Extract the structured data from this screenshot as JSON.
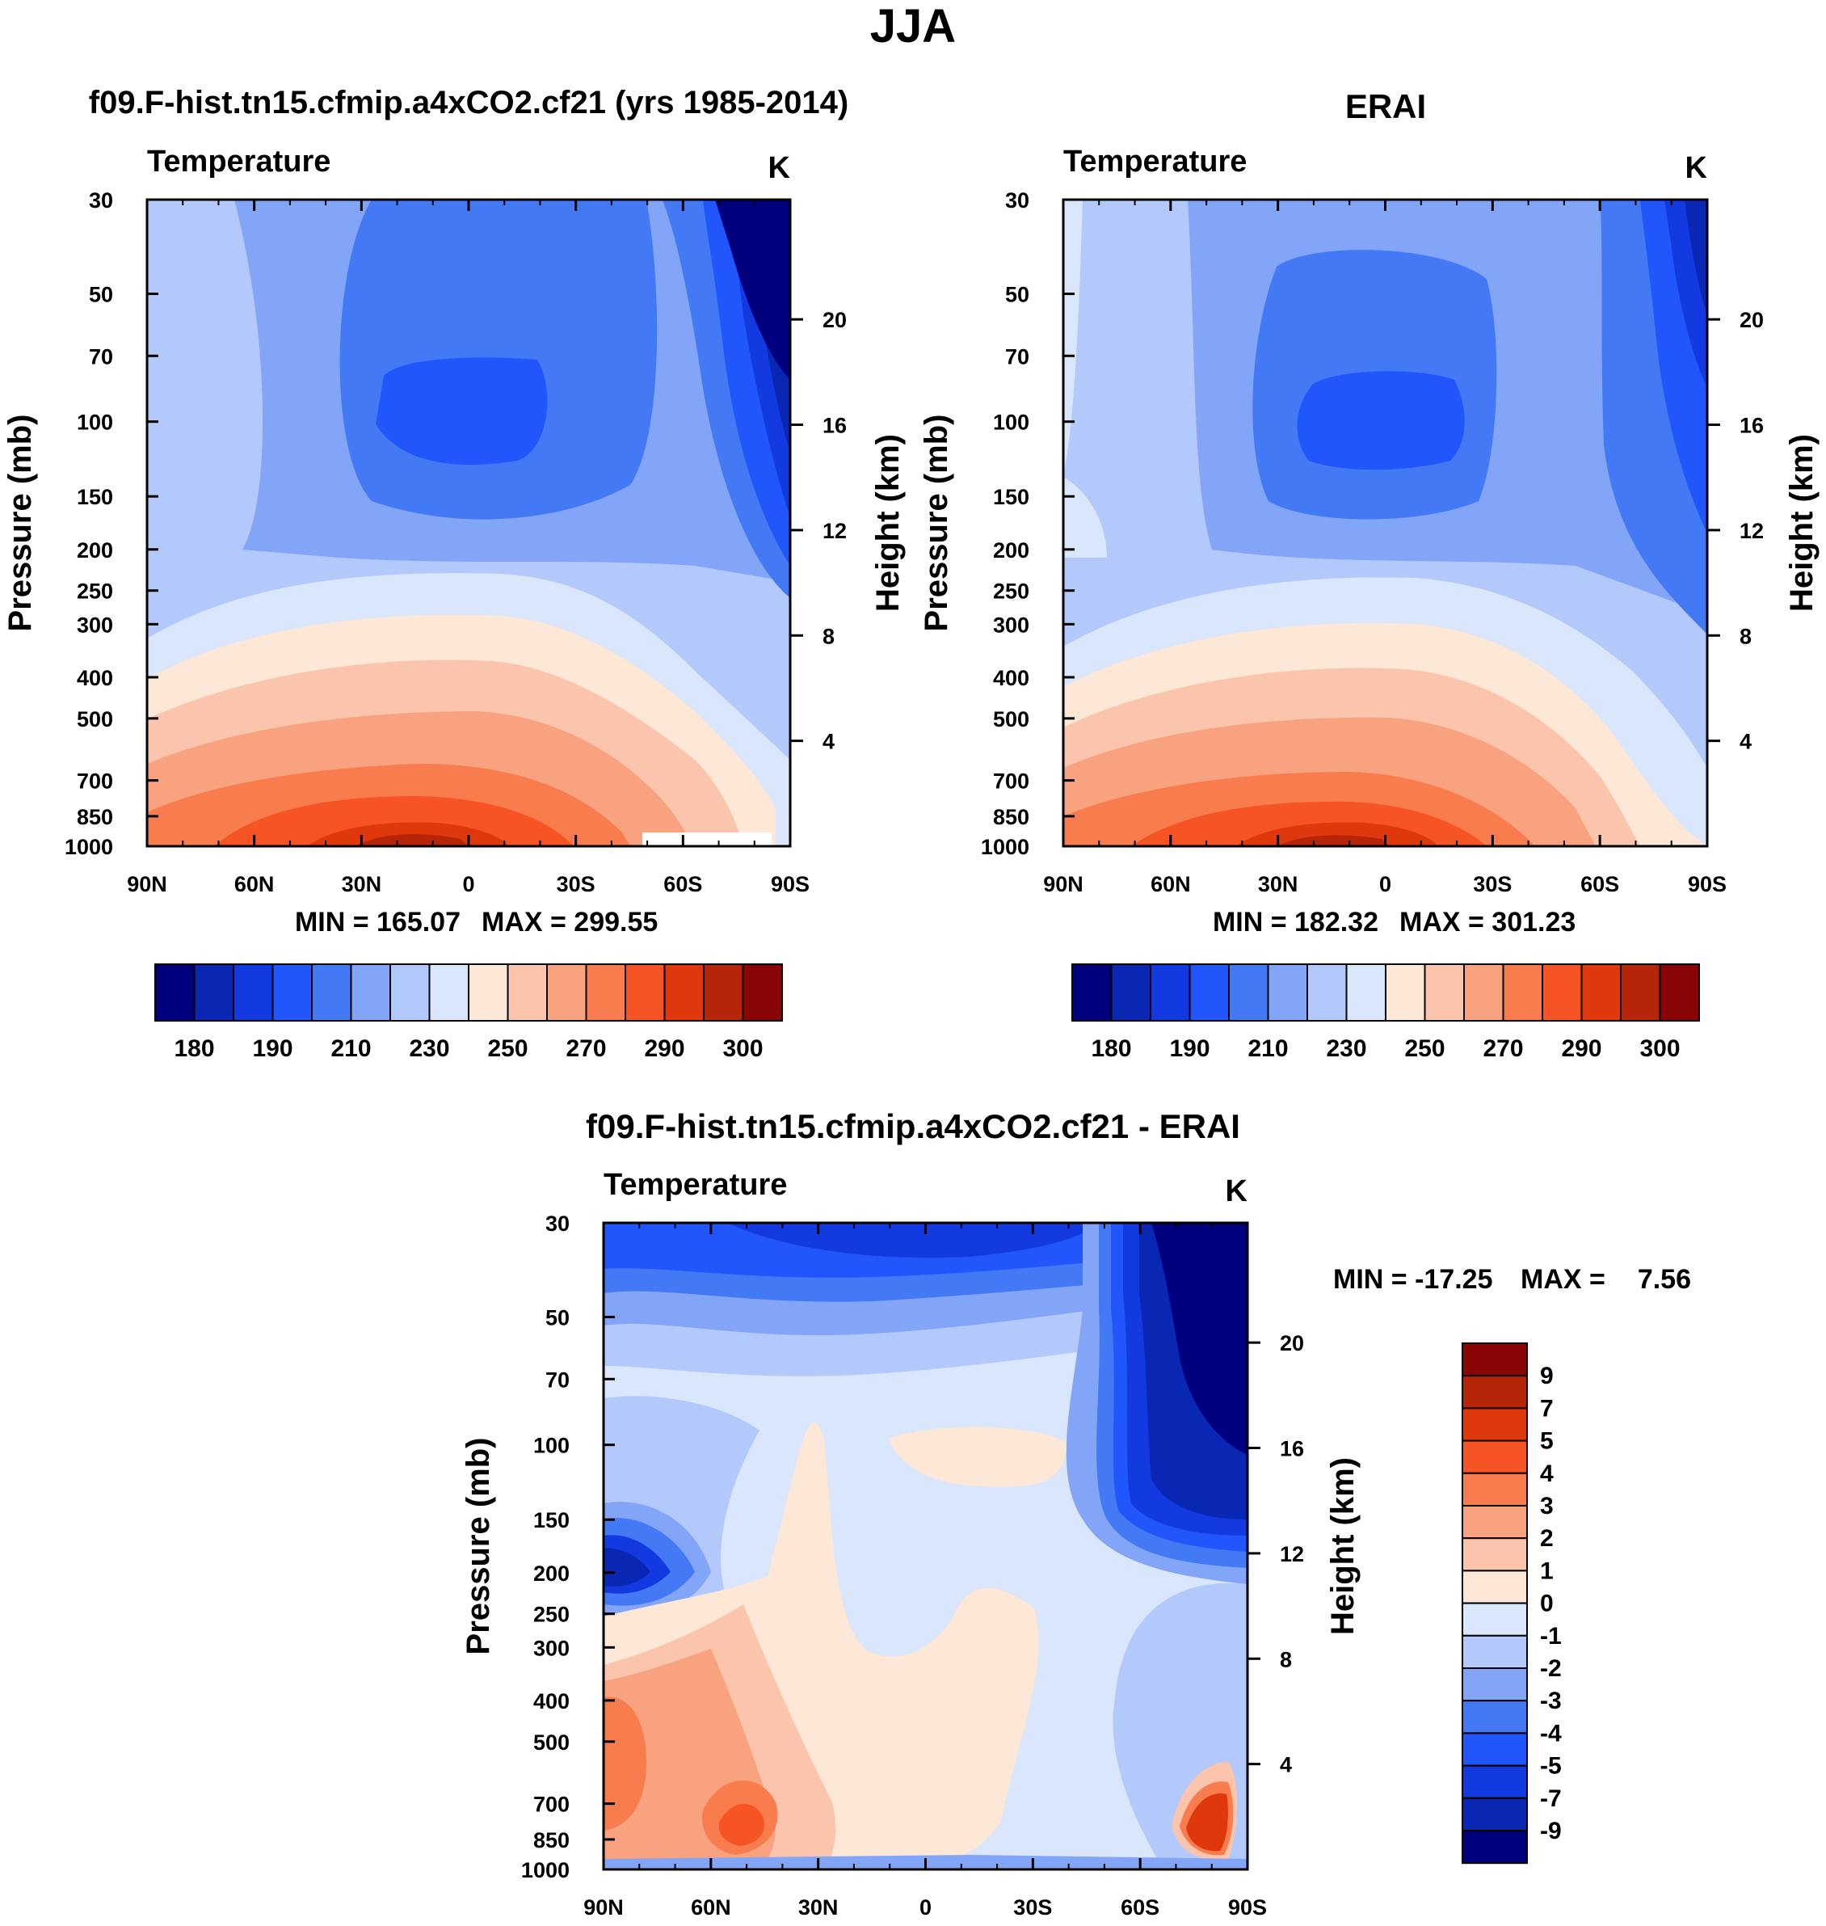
{
  "figure_title": "JJA",
  "colors": {
    "abs_scale": [
      "#00007f",
      "#0a27b4",
      "#123ae0",
      "#2056fb",
      "#4479f5",
      "#82a5f7",
      "#b3c9fb",
      "#d9e6fc",
      "#fde7d6",
      "#fbc5ad",
      "#f9a27f",
      "#f87c4d",
      "#f65424",
      "#e0380d",
      "#b62508",
      "#8a0606"
    ],
    "diff_scale": [
      "#00007f",
      "#0a27b4",
      "#123ae0",
      "#2056fb",
      "#4479f5",
      "#82a5f7",
      "#b3c9fb",
      "#d9e6fc",
      "#fde7d6",
      "#fbc5ad",
      "#f9a27f",
      "#f87c4d",
      "#f65424",
      "#e0380d",
      "#b62508",
      "#8a0606"
    ]
  },
  "chart_data": [
    {
      "id": "model",
      "type": "heatmap",
      "title": "f09.F-hist.tn15.cfmip.a4xCO2.cf21 (yrs 1985-2014)",
      "variable": "Temperature",
      "units": "K",
      "xlabel": "",
      "ylabel": "Pressure (mb)",
      "y2label": "Height (km)",
      "x_ticks": [
        "90N",
        "60N",
        "30N",
        "0",
        "30S",
        "60S",
        "90S"
      ],
      "y_ticks": [
        30,
        50,
        70,
        100,
        150,
        200,
        250,
        300,
        400,
        500,
        700,
        850,
        1000
      ],
      "y2_ticks": [
        20,
        16,
        12,
        8,
        4
      ],
      "min_label": "MIN = 165.07",
      "max_label": "MAX = 299.55",
      "colorbar_labels": [
        "180",
        "190",
        "210",
        "230",
        "250",
        "270",
        "290",
        "300"
      ]
    },
    {
      "id": "obs",
      "type": "heatmap",
      "title": "ERAI",
      "variable": "Temperature",
      "units": "K",
      "xlabel": "",
      "ylabel": "Pressure (mb)",
      "y2label": "Height (km)",
      "x_ticks": [
        "90N",
        "60N",
        "30N",
        "0",
        "30S",
        "60S",
        "90S"
      ],
      "y_ticks": [
        30,
        50,
        70,
        100,
        150,
        200,
        250,
        300,
        400,
        500,
        700,
        850,
        1000
      ],
      "y2_ticks": [
        20,
        16,
        12,
        8,
        4
      ],
      "min_label": "MIN = 182.32",
      "max_label": "MAX = 301.23",
      "colorbar_labels": [
        "180",
        "190",
        "210",
        "230",
        "250",
        "270",
        "290",
        "300"
      ]
    },
    {
      "id": "diff",
      "type": "heatmap",
      "title": "f09.F-hist.tn15.cfmip.a4xCO2.cf21 - ERAI",
      "variable": "Temperature",
      "units": "K",
      "xlabel": "",
      "ylabel": "Pressure (mb)",
      "y2label": "Height (km)",
      "x_ticks": [
        "90N",
        "60N",
        "30N",
        "0",
        "30S",
        "60S",
        "90S"
      ],
      "y_ticks": [
        30,
        50,
        70,
        100,
        150,
        200,
        250,
        300,
        400,
        500,
        700,
        850,
        1000
      ],
      "y2_ticks": [
        20,
        16,
        12,
        8,
        4
      ],
      "min_label": "MIN = -17.25",
      "max_label": "MAX =",
      "max_value": "7.56",
      "colorbar_labels": [
        "9",
        "7",
        "5",
        "4",
        "3",
        "2",
        "1",
        "0",
        "-1",
        "-2",
        "-3",
        "-4",
        "-5",
        "-7",
        "-9"
      ]
    }
  ]
}
